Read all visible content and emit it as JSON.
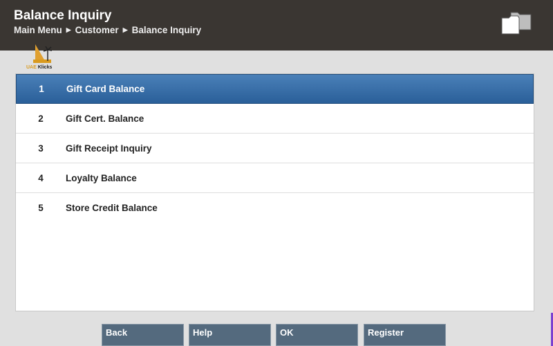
{
  "header": {
    "title": "Balance Inquiry",
    "breadcrumb": [
      "Main Menu",
      "Customer",
      "Balance Inquiry"
    ],
    "separator": "▶"
  },
  "logo": {
    "text_a": "UAE",
    "text_b": "Klicks"
  },
  "menu": {
    "items": [
      {
        "num": "1",
        "label": "Gift Card Balance",
        "selected": true
      },
      {
        "num": "2",
        "label": "Gift Cert. Balance"
      },
      {
        "num": "3",
        "label": "Gift Receipt Inquiry"
      },
      {
        "num": "4",
        "label": "Loyalty Balance"
      },
      {
        "num": "5",
        "label": "Store Credit Balance"
      }
    ]
  },
  "buttons": {
    "back": "Back",
    "help": "Help",
    "ok": "OK",
    "register": "Register"
  },
  "colors": {
    "header": "#3a3632",
    "selected": "#2a5f99",
    "button": "#546a7e"
  }
}
